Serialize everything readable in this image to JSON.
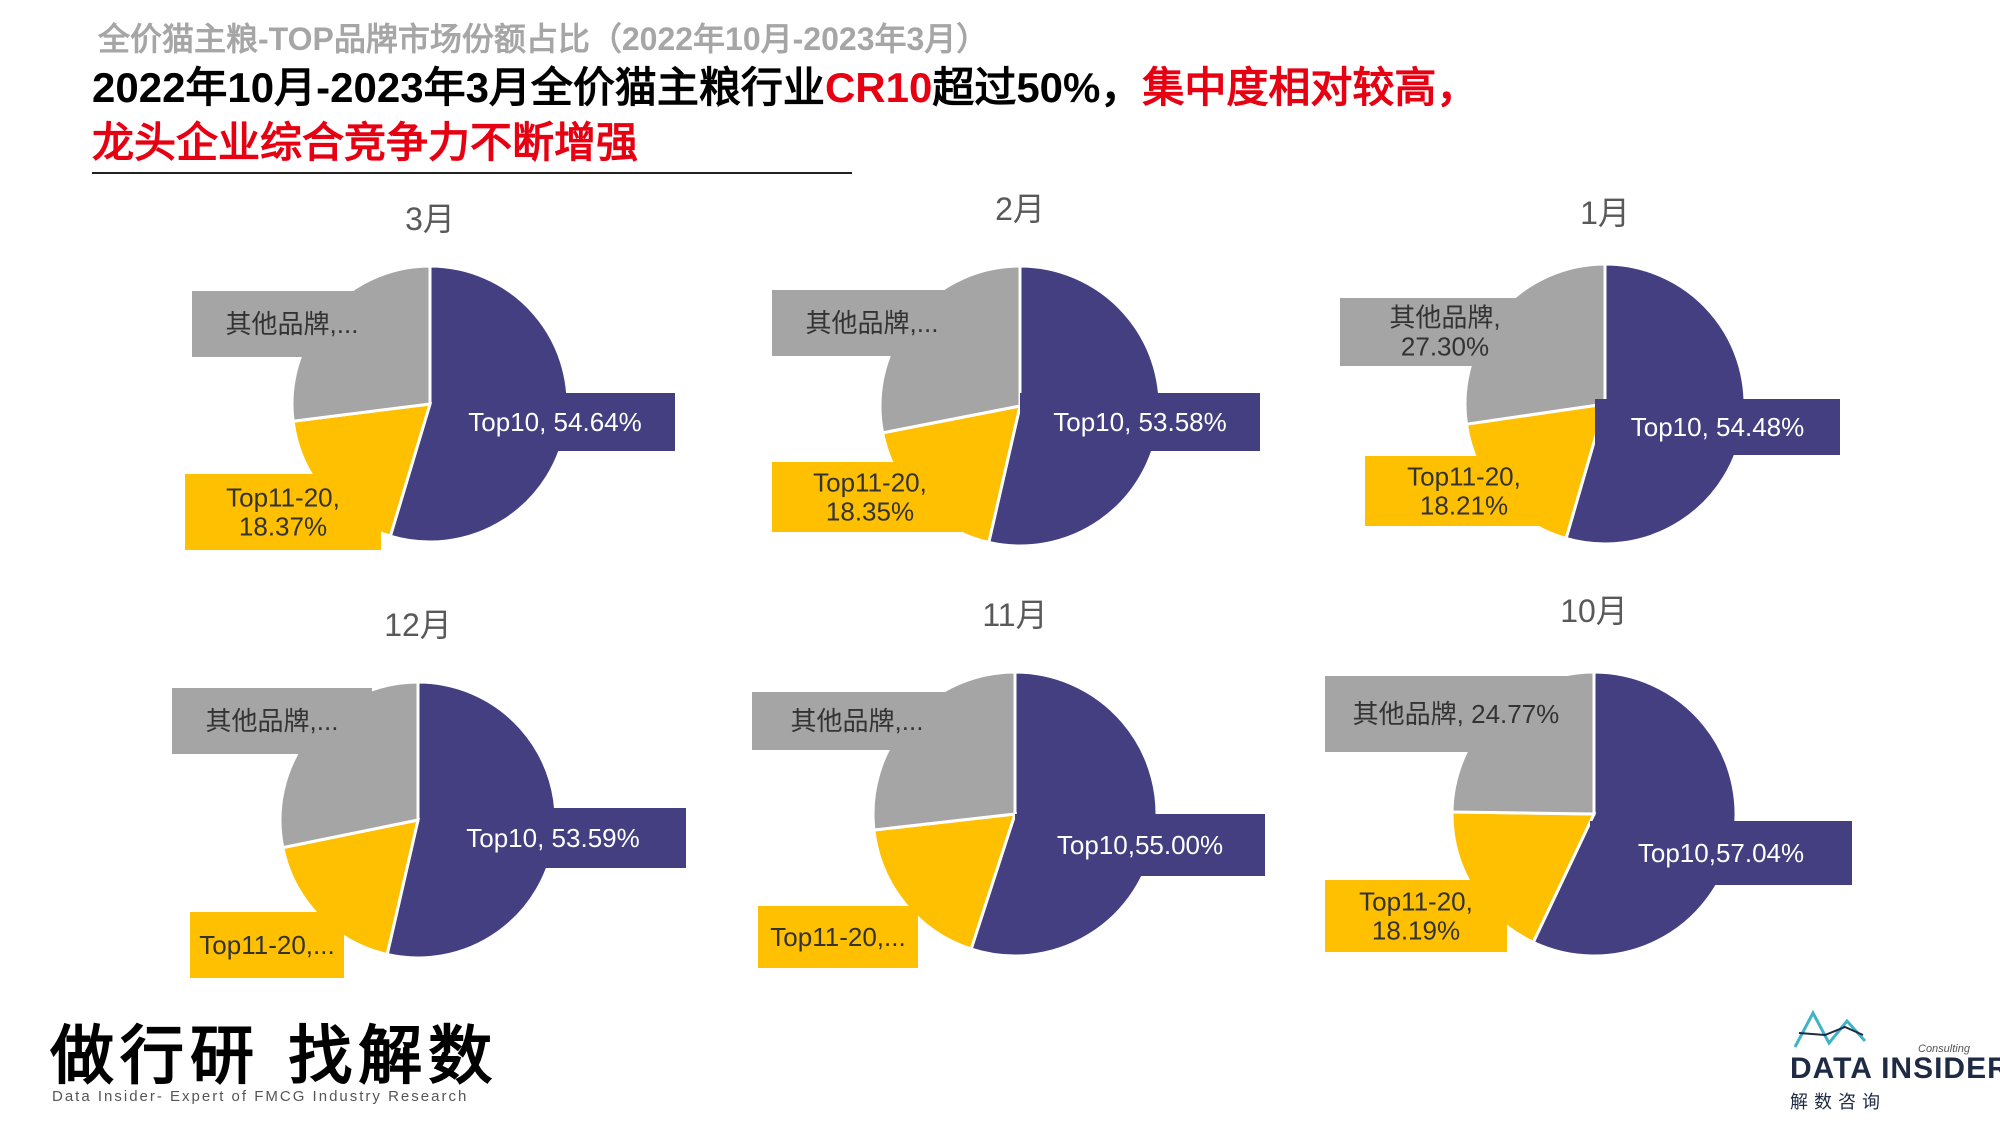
{
  "header": {
    "subtitle": "全价猫主粮-TOP品牌市场份额占比（2022年10月-2023年3月）",
    "headline_part1": "2022年10月-2023年3月全价猫主粮行业",
    "headline_cr10": "CR10",
    "headline_part2": "超过50%，",
    "headline_part3": "集中度相对较高，",
    "headline_line2": "龙头企业综合竞争力不断增强"
  },
  "colors": {
    "top10": "#433f80",
    "top11_20": "#fec000",
    "others": "#a5a5a5",
    "accent": "#e60012"
  },
  "chart_data": [
    {
      "type": "pie",
      "title": "3月",
      "slices": [
        {
          "name": "Top10",
          "value": 54.64,
          "label": "Top10, 54.64%"
        },
        {
          "name": "Top11-20",
          "value": 18.37,
          "label": "Top11-20,\n18.37%"
        },
        {
          "name": "其他品牌",
          "value": 26.99,
          "label": "其他品牌,..."
        }
      ]
    },
    {
      "type": "pie",
      "title": "2月",
      "slices": [
        {
          "name": "Top10",
          "value": 53.58,
          "label": "Top10, 53.58%"
        },
        {
          "name": "Top11-20",
          "value": 18.35,
          "label": "Top11-20,\n18.35%"
        },
        {
          "name": "其他品牌",
          "value": 28.07,
          "label": "其他品牌,..."
        }
      ]
    },
    {
      "type": "pie",
      "title": "1月",
      "slices": [
        {
          "name": "Top10",
          "value": 54.48,
          "label": "Top10, 54.48%"
        },
        {
          "name": "Top11-20",
          "value": 18.21,
          "label": "Top11-20,\n18.21%"
        },
        {
          "name": "其他品牌",
          "value": 27.3,
          "label": "其他品牌,\n27.30%"
        }
      ]
    },
    {
      "type": "pie",
      "title": "12月",
      "slices": [
        {
          "name": "Top10",
          "value": 53.59,
          "label": "Top10, 53.59%"
        },
        {
          "name": "Top11-20",
          "value": 18.2,
          "label": "Top11-20,..."
        },
        {
          "name": "其他品牌",
          "value": 28.21,
          "label": "其他品牌,..."
        }
      ]
    },
    {
      "type": "pie",
      "title": "11月",
      "slices": [
        {
          "name": "Top10",
          "value": 55.0,
          "label": "Top10,55.00%"
        },
        {
          "name": "Top11-20",
          "value": 18.2,
          "label": "Top11-20,..."
        },
        {
          "name": "其他品牌",
          "value": 26.8,
          "label": "其他品牌,..."
        }
      ]
    },
    {
      "type": "pie",
      "title": "10月",
      "slices": [
        {
          "name": "Top10",
          "value": 57.04,
          "label": "Top10,57.04%"
        },
        {
          "name": "Top11-20",
          "value": 18.19,
          "label": "Top11-20,\n18.19%"
        },
        {
          "name": "其他品牌",
          "value": 24.77,
          "label": "其他品牌, 24.77%"
        }
      ]
    }
  ],
  "footer": {
    "slogan": "做行研 找解数",
    "slogan_sub": "Data Insider- Expert of FMCG Industry Research",
    "brand_name": "DATA INSIDER",
    "brand_cn": "解数咨询",
    "brand_consulting": "Consulting"
  }
}
